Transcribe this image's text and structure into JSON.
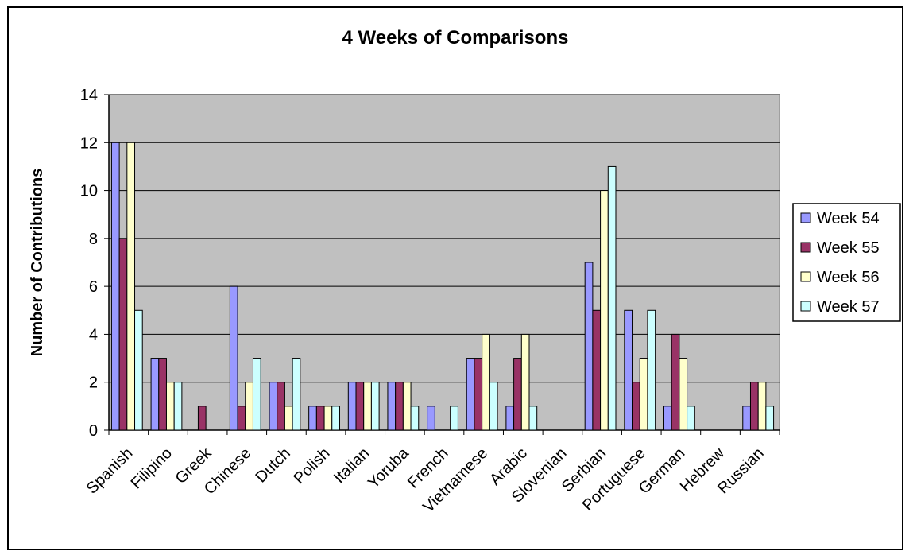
{
  "chart_data": {
    "type": "bar",
    "title": "4 Weeks of Comparisons",
    "xlabel": "",
    "ylabel": "Number of Contributions",
    "ylim": [
      0,
      14
    ],
    "yticks": [
      0,
      2,
      4,
      6,
      8,
      10,
      12,
      14
    ],
    "grid": true,
    "legend_position": "right",
    "categories": [
      "Spanish",
      "Filipino",
      "Greek",
      "Chinese",
      "Dutch",
      "Polish",
      "Italian",
      "Yoruba",
      "French",
      "Vietnamese",
      "Arabic",
      "Slovenian",
      "Serbian",
      "Portuguese",
      "German",
      "Hebrew",
      "Russian"
    ],
    "series": [
      {
        "name": "Week 54",
        "color": "#9999ff",
        "values": [
          12,
          3,
          0,
          6,
          2,
          1,
          2,
          2,
          1,
          3,
          1,
          0,
          7,
          5,
          1,
          0,
          1
        ]
      },
      {
        "name": "Week 55",
        "color": "#993366",
        "values": [
          8,
          3,
          1,
          1,
          2,
          1,
          2,
          2,
          0,
          3,
          3,
          0,
          5,
          2,
          4,
          0,
          2
        ]
      },
      {
        "name": "Week 56",
        "color": "#ffffcc",
        "values": [
          12,
          2,
          0,
          2,
          1,
          1,
          2,
          2,
          0,
          4,
          4,
          0,
          10,
          3,
          3,
          0,
          2
        ]
      },
      {
        "name": "Week 57",
        "color": "#ccffff",
        "values": [
          5,
          2,
          0,
          3,
          3,
          1,
          2,
          1,
          1,
          2,
          1,
          0,
          11,
          5,
          1,
          0,
          1
        ]
      }
    ],
    "plot_background": "#c0c0c0"
  }
}
